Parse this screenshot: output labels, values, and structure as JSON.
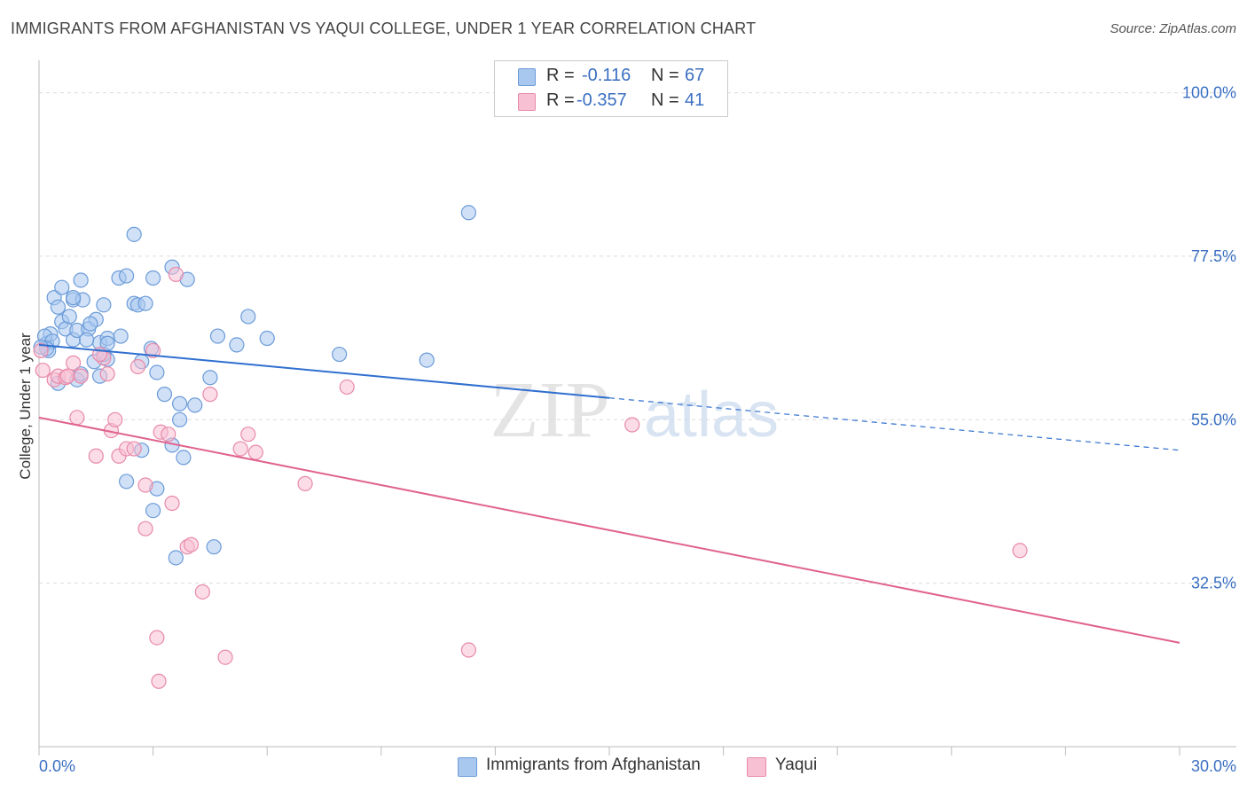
{
  "title": "IMMIGRANTS FROM AFGHANISTAN VS YAQUI COLLEGE, UNDER 1 YEAR CORRELATION CHART",
  "source": "Source: ZipAtlas.com",
  "watermark": {
    "zip": "ZIP",
    "atlas": "atlas"
  },
  "legend": {
    "r_label": "R =",
    "n_label": "N =",
    "rows": [
      {
        "r": "-0.116",
        "n": "67",
        "color": "#a9c8f0",
        "border": "#6b9bd8"
      },
      {
        "r": "-0.357",
        "n": "41",
        "color": "#f7c0d3",
        "border": "#e88aaa"
      }
    ]
  },
  "bottom_legend": [
    "Immigrants from Afghanistan",
    "Yaqui"
  ],
  "chart_data": {
    "type": "scatter",
    "xlabel": "",
    "ylabel": "College, Under 1 year",
    "x_tick_labels": [
      "0.0%",
      "30.0%"
    ],
    "y_tick_labels": [
      "100.0%",
      "77.5%",
      "55.0%",
      "32.5%"
    ],
    "xlim": [
      0,
      30
    ],
    "ylim": [
      10,
      103
    ],
    "y_grid": [
      100,
      77.5,
      55,
      32.5
    ],
    "series": [
      {
        "name": "Immigrants from Afghanistan",
        "color": "#a9c8f0",
        "stroke": "#6b9bd8",
        "line_color": "#2f6fcf",
        "trend": {
          "x0": 0,
          "y0": 65.3,
          "x1": 15,
          "y1": 58.0,
          "x_dash_end": 30,
          "y_dash_end": 50.8
        },
        "points": [
          [
            0.2,
            65.5
          ],
          [
            0.3,
            66.8
          ],
          [
            0.25,
            64.5
          ],
          [
            0.4,
            71.8
          ],
          [
            0.5,
            70.5
          ],
          [
            0.6,
            73.2
          ],
          [
            0.6,
            68.5
          ],
          [
            0.7,
            67.5
          ],
          [
            0.9,
            71.5
          ],
          [
            0.9,
            66.0
          ],
          [
            0.8,
            69.2
          ],
          [
            1.0,
            67.3
          ],
          [
            1.1,
            74.2
          ],
          [
            1.15,
            71.5
          ],
          [
            1.3,
            67.5
          ],
          [
            1.5,
            68.8
          ],
          [
            1.7,
            70.8
          ],
          [
            1.6,
            65.6
          ],
          [
            1.8,
            66.2
          ],
          [
            1.35,
            68.2
          ],
          [
            1.8,
            63.3
          ],
          [
            2.1,
            74.5
          ],
          [
            2.3,
            74.8
          ],
          [
            2.5,
            71.0
          ],
          [
            2.6,
            70.8
          ],
          [
            2.8,
            71.0
          ],
          [
            2.5,
            80.5
          ],
          [
            3.0,
            74.5
          ],
          [
            2.7,
            63.0
          ],
          [
            3.1,
            61.5
          ],
          [
            3.5,
            76.0
          ],
          [
            3.9,
            74.3
          ],
          [
            3.3,
            58.5
          ],
          [
            3.7,
            57.2
          ],
          [
            4.1,
            57.0
          ],
          [
            3.7,
            55.0
          ],
          [
            3.5,
            51.5
          ],
          [
            3.8,
            49.8
          ],
          [
            2.7,
            50.8
          ],
          [
            2.3,
            46.5
          ],
          [
            3.1,
            45.5
          ],
          [
            3.0,
            42.5
          ],
          [
            3.6,
            36.0
          ],
          [
            4.6,
            37.5
          ],
          [
            4.5,
            60.8
          ],
          [
            4.7,
            66.5
          ],
          [
            5.2,
            65.3
          ],
          [
            5.5,
            69.2
          ],
          [
            6.0,
            66.2
          ],
          [
            7.9,
            64.0
          ],
          [
            10.2,
            63.2
          ],
          [
            11.3,
            83.5
          ],
          [
            0.15,
            66.5
          ],
          [
            0.35,
            65.8
          ],
          [
            0.2,
            64.8
          ],
          [
            0.5,
            60.0
          ],
          [
            1.0,
            60.5
          ],
          [
            1.1,
            61.3
          ],
          [
            1.45,
            63.0
          ],
          [
            1.6,
            61.0
          ],
          [
            1.7,
            64.0
          ],
          [
            2.15,
            66.5
          ],
          [
            2.95,
            64.8
          ],
          [
            0.9,
            71.8
          ],
          [
            1.25,
            66.0
          ],
          [
            1.8,
            65.5
          ],
          [
            0.05,
            65.0
          ]
        ]
      },
      {
        "name": "Yaqui",
        "color": "#f7c0d3",
        "stroke": "#e88aaa",
        "line_color": "#e0628f",
        "trend": {
          "x0": 0,
          "y0": 55.3,
          "x1": 30,
          "y1": 24.3
        },
        "points": [
          [
            0.05,
            64.5
          ],
          [
            0.1,
            61.8
          ],
          [
            0.4,
            60.5
          ],
          [
            0.5,
            61.0
          ],
          [
            0.7,
            60.8
          ],
          [
            0.75,
            61.0
          ],
          [
            0.9,
            62.8
          ],
          [
            1.0,
            55.3
          ],
          [
            1.1,
            61.0
          ],
          [
            1.5,
            50.0
          ],
          [
            1.7,
            63.5
          ],
          [
            1.8,
            61.3
          ],
          [
            1.9,
            53.5
          ],
          [
            2.0,
            55.0
          ],
          [
            2.1,
            50.0
          ],
          [
            2.3,
            51.0
          ],
          [
            2.5,
            51.0
          ],
          [
            2.6,
            62.3
          ],
          [
            2.8,
            46.0
          ],
          [
            2.8,
            40.0
          ],
          [
            3.0,
            64.5
          ],
          [
            3.2,
            53.3
          ],
          [
            3.5,
            43.5
          ],
          [
            3.6,
            75.0
          ],
          [
            3.9,
            37.5
          ],
          [
            4.0,
            37.8
          ],
          [
            4.3,
            31.3
          ],
          [
            4.5,
            58.5
          ],
          [
            4.9,
            22.3
          ],
          [
            5.3,
            51.0
          ],
          [
            5.5,
            53.0
          ],
          [
            5.7,
            50.5
          ],
          [
            7.0,
            46.2
          ],
          [
            8.1,
            59.5
          ],
          [
            15.6,
            54.3
          ],
          [
            25.8,
            37.0
          ],
          [
            11.3,
            23.3
          ],
          [
            3.1,
            25.0
          ],
          [
            3.15,
            19.0
          ],
          [
            3.4,
            53.0
          ],
          [
            1.6,
            64.0
          ]
        ]
      }
    ]
  }
}
